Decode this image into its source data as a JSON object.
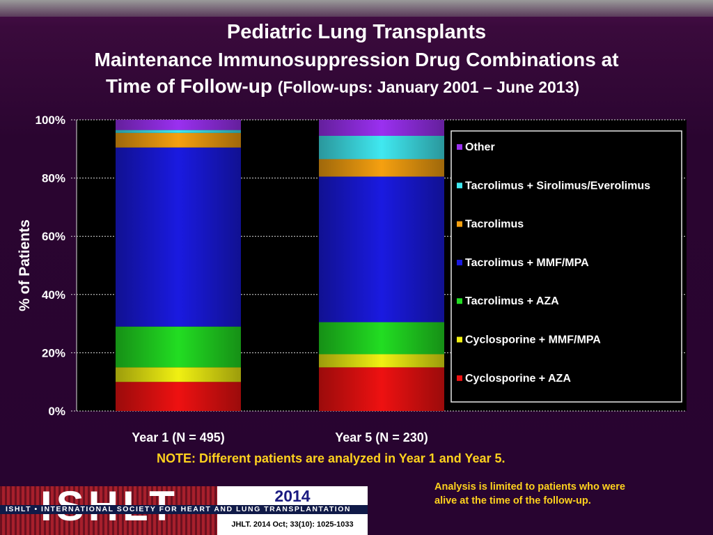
{
  "title_line1": "Pediatric Lung Transplants",
  "title_line2": "Maintenance Immunosuppression Drug Combinations at",
  "title_line3_main": "Time of Follow-up",
  "title_line3_sub": "(Follow-ups: January 2001 – June 2013)",
  "note": "NOTE: Different patients are analyzed in Year 1 and Year 5.",
  "analysis_note_line1": "Analysis is limited to patients who were",
  "analysis_note_line2": "alive at the time of the follow-up.",
  "footer": {
    "logo_text": "ISHLT",
    "society": "ISHLT • INTERNATIONAL SOCIETY FOR HEART AND LUNG TRANSPLANTATION",
    "year": "2014",
    "citation": "JHLT. 2014 Oct; 33(10): 1025-1033"
  },
  "colors": {
    "Cyclosporine + AZA": "#ee1111",
    "Cyclosporine + MMF/MPA": "#f0f012",
    "Tacrolimus + AZA": "#22dd22",
    "Tacrolimus + MMF/MPA": "#1a1ae0",
    "Tacrolimus": "#f5a010",
    "Tacrolimus + Sirolimus/Everolimus": "#40e8f0",
    "Other": "#9a30f0"
  },
  "chart_data": {
    "type": "bar",
    "stacked": true,
    "categories": [
      "Year 1 (N = 495)",
      "Year 5 (N = 230)"
    ],
    "ylabel": "% of Patients",
    "ylim": [
      0,
      100
    ],
    "yticks": [
      "0%",
      "20%",
      "40%",
      "60%",
      "80%",
      "100%"
    ],
    "grid": true,
    "legend_position": "right",
    "series": [
      {
        "name": "Cyclosporine + AZA",
        "values": [
          10,
          15
        ]
      },
      {
        "name": "Cyclosporine + MMF/MPA",
        "values": [
          5,
          4.5
        ]
      },
      {
        "name": "Tacrolimus + AZA",
        "values": [
          14,
          11
        ]
      },
      {
        "name": "Tacrolimus + MMF/MPA",
        "values": [
          61.5,
          50
        ]
      },
      {
        "name": "Tacrolimus",
        "values": [
          5,
          6
        ]
      },
      {
        "name": "Tacrolimus + Sirolimus/Everolimus",
        "values": [
          1,
          8
        ]
      },
      {
        "name": "Other",
        "values": [
          3.5,
          5.5
        ]
      }
    ]
  }
}
